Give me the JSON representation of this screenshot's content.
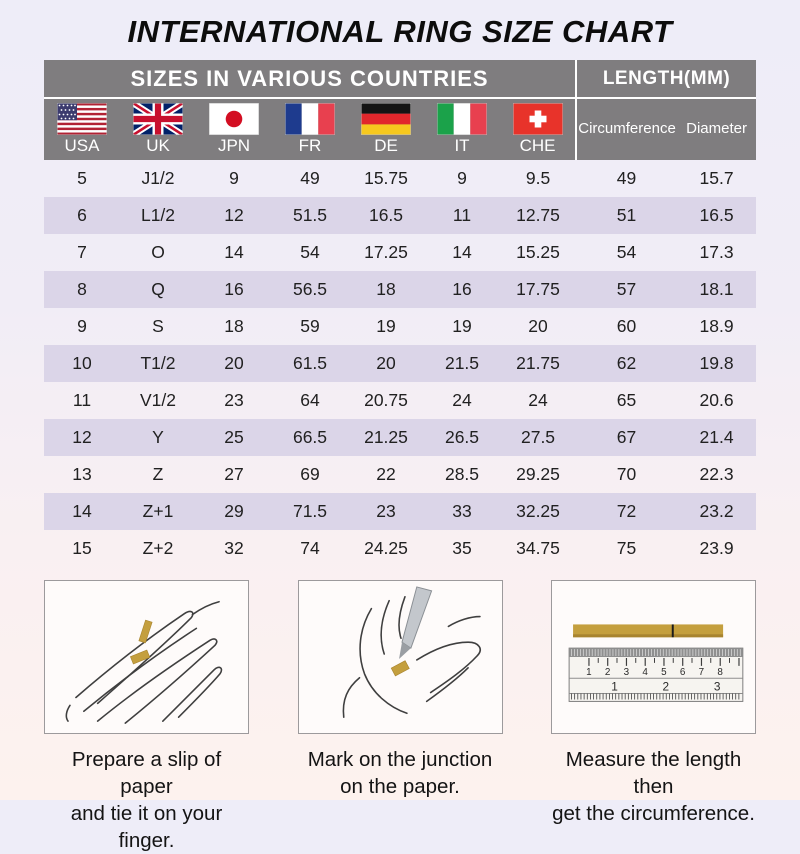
{
  "title": "INTERNATIONAL RING SIZE CHART",
  "table": {
    "group_headers": {
      "countries": "SIZES IN VARIOUS COUNTRIES",
      "length": "LENGTH(MM)"
    },
    "country_columns": [
      {
        "code": "USA",
        "flag": "usa"
      },
      {
        "code": "UK",
        "flag": "uk"
      },
      {
        "code": "JPN",
        "flag": "japan"
      },
      {
        "code": "FR",
        "flag": "france"
      },
      {
        "code": "DE",
        "flag": "germany"
      },
      {
        "code": "IT",
        "flag": "italy"
      },
      {
        "code": "CHE",
        "flag": "switzerland"
      }
    ],
    "length_columns": {
      "circumference": "Circumference",
      "diameter": "Diameter"
    },
    "rows": [
      [
        "5",
        "J1/2",
        "9",
        "49",
        "15.75",
        "9",
        "9.5",
        "49",
        "15.7"
      ],
      [
        "6",
        "L1/2",
        "12",
        "51.5",
        "16.5",
        "11",
        "12.75",
        "51",
        "16.5"
      ],
      [
        "7",
        "O",
        "14",
        "54",
        "17.25",
        "14",
        "15.25",
        "54",
        "17.3"
      ],
      [
        "8",
        "Q",
        "16",
        "56.5",
        "18",
        "16",
        "17.75",
        "57",
        "18.1"
      ],
      [
        "9",
        "S",
        "18",
        "59",
        "19",
        "19",
        "20",
        "60",
        "18.9"
      ],
      [
        "10",
        "T1/2",
        "20",
        "61.5",
        "20",
        "21.5",
        "21.75",
        "62",
        "19.8"
      ],
      [
        "11",
        "V1/2",
        "23",
        "64",
        "20.75",
        "24",
        "24",
        "65",
        "20.6"
      ],
      [
        "12",
        "Y",
        "25",
        "66.5",
        "21.25",
        "26.5",
        "27.5",
        "67",
        "21.4"
      ],
      [
        "13",
        "Z",
        "27",
        "69",
        "22",
        "28.5",
        "29.25",
        "70",
        "22.3"
      ],
      [
        "14",
        "Z+1",
        "29",
        "71.5",
        "23",
        "33",
        "32.25",
        "72",
        "23.2"
      ],
      [
        "15",
        "Z+2",
        "32",
        "74",
        "24.25",
        "35",
        "34.75",
        "75",
        "23.9"
      ]
    ]
  },
  "steps": [
    {
      "illustration": "hand-with-paper-strip",
      "caption": [
        "Prepare a slip of paper",
        "and tie it on your finger."
      ]
    },
    {
      "illustration": "mark-junction-with-pen",
      "caption": [
        "Mark on the junction",
        "on the paper."
      ]
    },
    {
      "illustration": "ruler-measurement",
      "caption": [
        "Measure the length then",
        "get the circumference."
      ],
      "ruler": {
        "top_scale": [
          "1",
          "2",
          "3",
          "4",
          "5",
          "6",
          "7",
          "8"
        ],
        "mid_scale": [
          "1",
          "2",
          "3"
        ]
      }
    }
  ],
  "colors": {
    "header_gray": "#7f7d7f",
    "row_purple": "#dbd5e8",
    "paper_gold": "#c49f3e",
    "background_top": "#eeedf8",
    "background_bottom": "#fdf2ee"
  },
  "chart_data": {
    "type": "table",
    "title": "INTERNATIONAL RING SIZE CHART",
    "columns": [
      "USA",
      "UK",
      "JPN",
      "FR",
      "DE",
      "IT",
      "CHE",
      "Circumference (mm)",
      "Diameter (mm)"
    ],
    "rows": [
      [
        "5",
        "J1/2",
        "9",
        "49",
        "15.75",
        "9",
        "9.5",
        "49",
        "15.7"
      ],
      [
        "6",
        "L1/2",
        "12",
        "51.5",
        "16.5",
        "11",
        "12.75",
        "51",
        "16.5"
      ],
      [
        "7",
        "O",
        "14",
        "54",
        "17.25",
        "14",
        "15.25",
        "54",
        "17.3"
      ],
      [
        "8",
        "Q",
        "16",
        "56.5",
        "18",
        "16",
        "17.75",
        "57",
        "18.1"
      ],
      [
        "9",
        "S",
        "18",
        "59",
        "19",
        "19",
        "20",
        "60",
        "18.9"
      ],
      [
        "10",
        "T1/2",
        "20",
        "61.5",
        "20",
        "21.5",
        "21.75",
        "62",
        "19.8"
      ],
      [
        "11",
        "V1/2",
        "23",
        "64",
        "20.75",
        "24",
        "24",
        "65",
        "20.6"
      ],
      [
        "12",
        "Y",
        "25",
        "66.5",
        "21.25",
        "26.5",
        "27.5",
        "67",
        "21.4"
      ],
      [
        "13",
        "Z",
        "27",
        "69",
        "22",
        "28.5",
        "29.25",
        "70",
        "22.3"
      ],
      [
        "14",
        "Z+1",
        "29",
        "71.5",
        "23",
        "33",
        "32.25",
        "72",
        "23.2"
      ],
      [
        "15",
        "Z+2",
        "32",
        "74",
        "24.25",
        "35",
        "34.75",
        "75",
        "23.9"
      ]
    ]
  }
}
